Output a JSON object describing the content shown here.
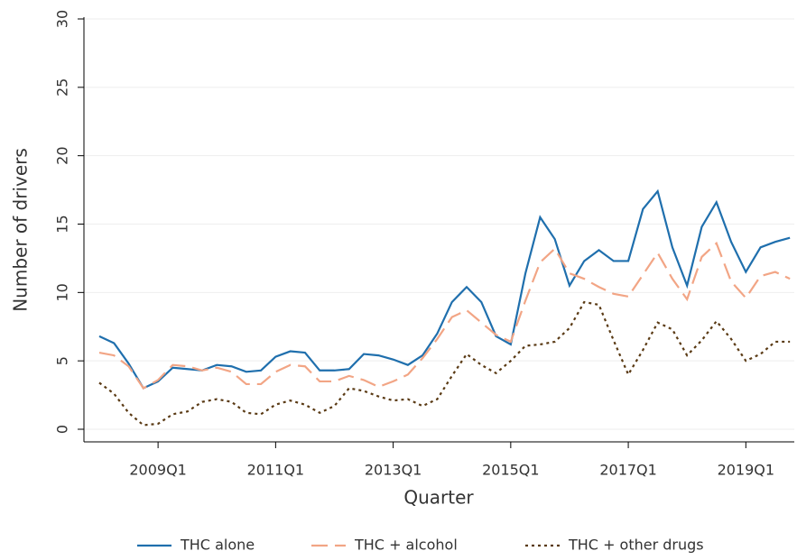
{
  "chart_data": {
    "type": "line",
    "x_label": "Quarter",
    "y_label": "Number of drivers",
    "categories": [
      null,
      null,
      null,
      null,
      "2009Q1",
      null,
      null,
      null,
      null,
      null,
      null,
      null,
      "2011Q1",
      null,
      null,
      null,
      null,
      null,
      null,
      null,
      "2013Q1",
      null,
      null,
      null,
      null,
      null,
      null,
      null,
      "2015Q1",
      null,
      null,
      null,
      null,
      null,
      null,
      null,
      "2017Q1",
      null,
      null,
      null,
      null,
      null,
      null,
      null,
      "2019Q1",
      null,
      null,
      null
    ],
    "series": [
      {
        "name": "THC alone",
        "color": "#1f6fad",
        "dash": "solid",
        "values": [
          6.8,
          6.3,
          4.8,
          3.0,
          3.5,
          4.5,
          4.4,
          4.3,
          4.7,
          4.6,
          4.2,
          4.3,
          5.3,
          5.7,
          5.6,
          4.3,
          4.3,
          4.4,
          5.5,
          5.4,
          5.1,
          4.7,
          5.4,
          7.0,
          9.3,
          10.4,
          9.3,
          6.8,
          6.2,
          11.4,
          15.5,
          13.9,
          10.5,
          12.3,
          13.1,
          12.3,
          12.3,
          16.1,
          17.4,
          13.3,
          10.5,
          14.8,
          16.6,
          13.7,
          11.5,
          13.3,
          13.7,
          14.0
        ]
      },
      {
        "name": "THC + alcohol",
        "color": "#f2a585",
        "dash": "dashed",
        "values": [
          5.6,
          5.4,
          4.6,
          3.0,
          3.6,
          4.7,
          4.6,
          4.3,
          4.5,
          4.2,
          3.3,
          3.3,
          4.2,
          4.7,
          4.6,
          3.5,
          3.5,
          3.9,
          3.6,
          3.1,
          3.5,
          4.0,
          5.2,
          6.6,
          8.2,
          8.7,
          7.8,
          6.9,
          6.4,
          9.4,
          12.2,
          13.2,
          11.4,
          11.0,
          10.4,
          9.9,
          9.7,
          11.3,
          12.9,
          11.0,
          9.5,
          12.6,
          13.6,
          10.8,
          9.6,
          11.2,
          11.5,
          11.0
        ]
      },
      {
        "name": "THC + other drugs",
        "color": "#5a3a14",
        "dash": "dotted",
        "values": [
          3.4,
          2.6,
          1.2,
          0.3,
          0.4,
          1.1,
          1.3,
          2.0,
          2.2,
          2.0,
          1.2,
          1.1,
          1.8,
          2.1,
          1.8,
          1.2,
          1.7,
          3.0,
          2.8,
          2.4,
          2.1,
          2.2,
          1.7,
          2.2,
          3.9,
          5.5,
          4.7,
          4.1,
          5.0,
          6.1,
          6.2,
          6.4,
          7.4,
          9.3,
          9.1,
          6.5,
          4.0,
          5.8,
          7.8,
          7.3,
          5.4,
          6.5,
          7.9,
          6.6,
          5.0,
          5.5,
          6.4,
          6.4
        ]
      }
    ],
    "ylim": [
      0,
      30
    ],
    "yticks": [
      0,
      5,
      10,
      15,
      20,
      25,
      30
    ],
    "grid": true,
    "legend": "bottom"
  }
}
